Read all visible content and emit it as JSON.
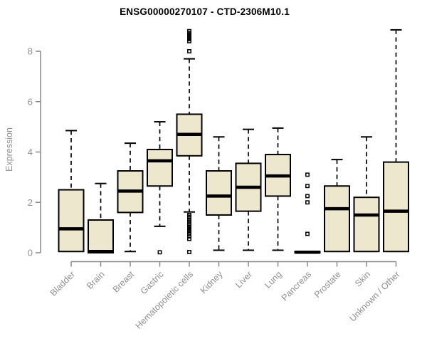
{
  "chart_data": {
    "type": "boxplot",
    "title": "ENSG00000270107 - CTD-2306M10.1",
    "ylabel": "Expression",
    "xlabel": "",
    "ylim": [
      0,
      8.9
    ],
    "yticks": [
      0,
      2,
      4,
      6,
      8
    ],
    "grid": false,
    "legend": "none",
    "box_fill": "#ECE7CD",
    "box_border": "#000000",
    "median_color": "#000000",
    "whisker_color": "#000000",
    "axis_color": "#888888",
    "text_color": "#909090",
    "title_color": "#000000",
    "categories": [
      "Bladder",
      "Brain",
      "Breast",
      "Gastric",
      "Hematopoietic cells",
      "Kidney",
      "Liver",
      "Lung",
      "Pancreas",
      "Prostate",
      "Skin",
      "Unknown / Other"
    ],
    "boxes": [
      {
        "label": "Bladder",
        "low": 0.05,
        "q1": 0.05,
        "median": 0.95,
        "q3": 2.5,
        "high": 4.85,
        "outliers": []
      },
      {
        "label": "Brain",
        "low": 0.0,
        "q1": 0.0,
        "median": 0.05,
        "q3": 1.3,
        "high": 2.75,
        "outliers": []
      },
      {
        "label": "Breast",
        "low": 0.05,
        "q1": 1.6,
        "median": 2.45,
        "q3": 3.25,
        "high": 4.35,
        "outliers": []
      },
      {
        "label": "Gastric",
        "low": 1.05,
        "q1": 2.65,
        "median": 3.65,
        "q3": 4.1,
        "high": 5.2,
        "outliers": [
          0.02
        ]
      },
      {
        "label": "Hematopoietic cells",
        "low": 1.62,
        "q1": 3.85,
        "median": 4.7,
        "q3": 5.5,
        "high": 7.7,
        "outliers": [
          8.8,
          8.72,
          8.64,
          8.56,
          8.48,
          8.4,
          8.0,
          1.5,
          1.43,
          1.36,
          1.29,
          1.22,
          1.15,
          1.08,
          1.0,
          0.92,
          0.84,
          0.75,
          0.65,
          0.55,
          0.03
        ]
      },
      {
        "label": "Kidney",
        "low": 0.1,
        "q1": 1.5,
        "median": 2.25,
        "q3": 3.25,
        "high": 4.6,
        "outliers": []
      },
      {
        "label": "Liver",
        "low": 0.1,
        "q1": 1.65,
        "median": 2.6,
        "q3": 3.55,
        "high": 4.9,
        "outliers": []
      },
      {
        "label": "Lung",
        "low": 0.1,
        "q1": 2.25,
        "median": 3.05,
        "q3": 3.9,
        "high": 4.95,
        "outliers": []
      },
      {
        "label": "Pancreas",
        "low": 0.0,
        "q1": 0.0,
        "median": 0.02,
        "q3": 0.05,
        "high": 0.05,
        "outliers": [
          3.1,
          2.65,
          2.25,
          2.0,
          0.75
        ]
      },
      {
        "label": "Prostate",
        "low": 0.05,
        "q1": 0.05,
        "median": 1.75,
        "q3": 2.65,
        "high": 3.7,
        "outliers": []
      },
      {
        "label": "Skin",
        "low": 0.05,
        "q1": 0.05,
        "median": 1.5,
        "q3": 2.2,
        "high": 4.6,
        "outliers": []
      },
      {
        "label": "Unknown / Other",
        "low": 0.05,
        "q1": 0.05,
        "median": 1.65,
        "q3": 3.6,
        "high": 8.85,
        "outliers": []
      }
    ]
  }
}
